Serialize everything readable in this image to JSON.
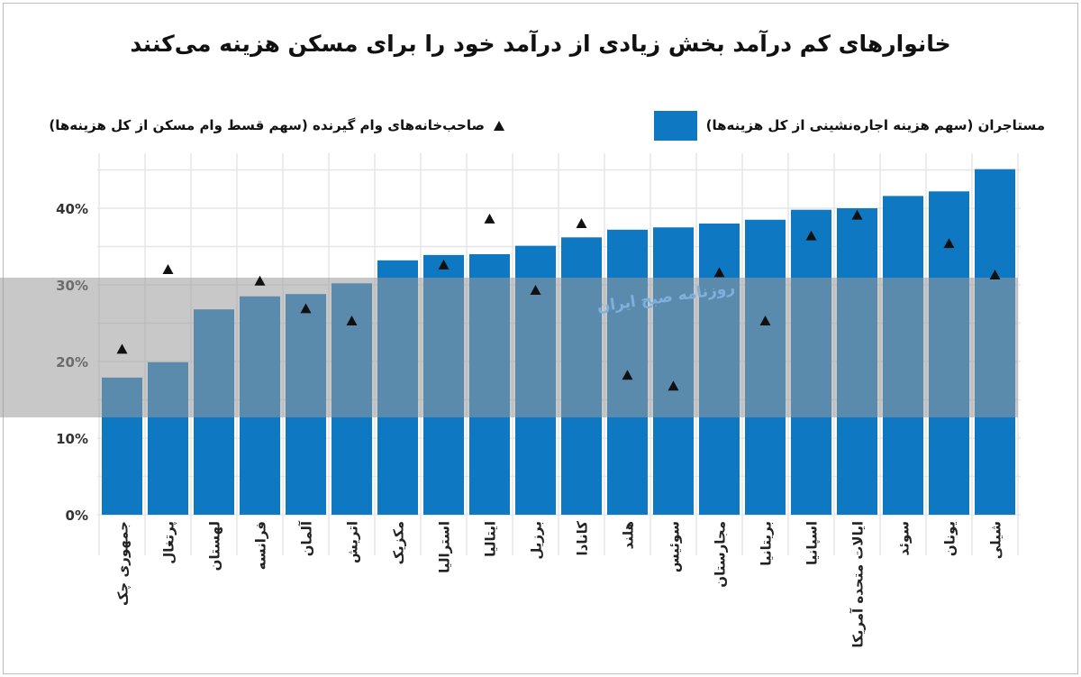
{
  "title": "خانوارهای کم درآمد بخش زیادی از درآمد خود را برای مسکن هزینه می‌کنند",
  "watermark": "روزنامه صبح ایران",
  "colors": {
    "bar": "#0f78c2",
    "marker": "#111111",
    "band": "#9a9a9a"
  },
  "chart_data": {
    "type": "bar",
    "title": "خانوارهای کم درآمد بخش زیادی از درآمد خود را برای مسکن هزینه می‌کنند",
    "xlabel": "",
    "ylabel": "",
    "ylim": [
      0,
      47
    ],
    "yticks": [
      0,
      10,
      20,
      30,
      40
    ],
    "ytick_labels": [
      "0%",
      "10%",
      "20%",
      "30%",
      "40%"
    ],
    "grid": true,
    "legend_placement": "top",
    "categories": [
      "جمهوری چک",
      "پرتغال",
      "لهستان",
      "فرانسه",
      "آلمان",
      "اتریش",
      "مکزیک",
      "استرالیا",
      "ایتالیا",
      "برزیل",
      "کانادا",
      "هلند",
      "سوئیس",
      "مجارستان",
      "بریتانیا",
      "اسپانیا",
      "ایالات متحده آمریکا",
      "سوئد",
      "یونان",
      "شیلی"
    ],
    "series": [
      {
        "name": "مستاجران (سهم هزینه اجاره‌نشینی از کل هزینه‌ها)",
        "type": "bar",
        "values": [
          17.9,
          19.9,
          26.8,
          28.5,
          28.8,
          30.2,
          33.2,
          33.9,
          34.0,
          35.1,
          36.2,
          37.2,
          37.5,
          38.0,
          38.5,
          39.8,
          40.0,
          41.6,
          42.2,
          45.1
        ]
      },
      {
        "name": "صاحب‌خانه‌های وام گیرنده (سهم قسط وام مسکن از کل هزینه‌ها)",
        "type": "scatter",
        "marker": "triangle",
        "values": [
          21.6,
          32.0,
          null,
          30.5,
          26.9,
          25.3,
          null,
          32.6,
          38.6,
          29.3,
          38.0,
          18.2,
          16.8,
          31.6,
          25.3,
          36.4,
          39.1,
          null,
          35.4,
          31.3
        ]
      }
    ]
  }
}
